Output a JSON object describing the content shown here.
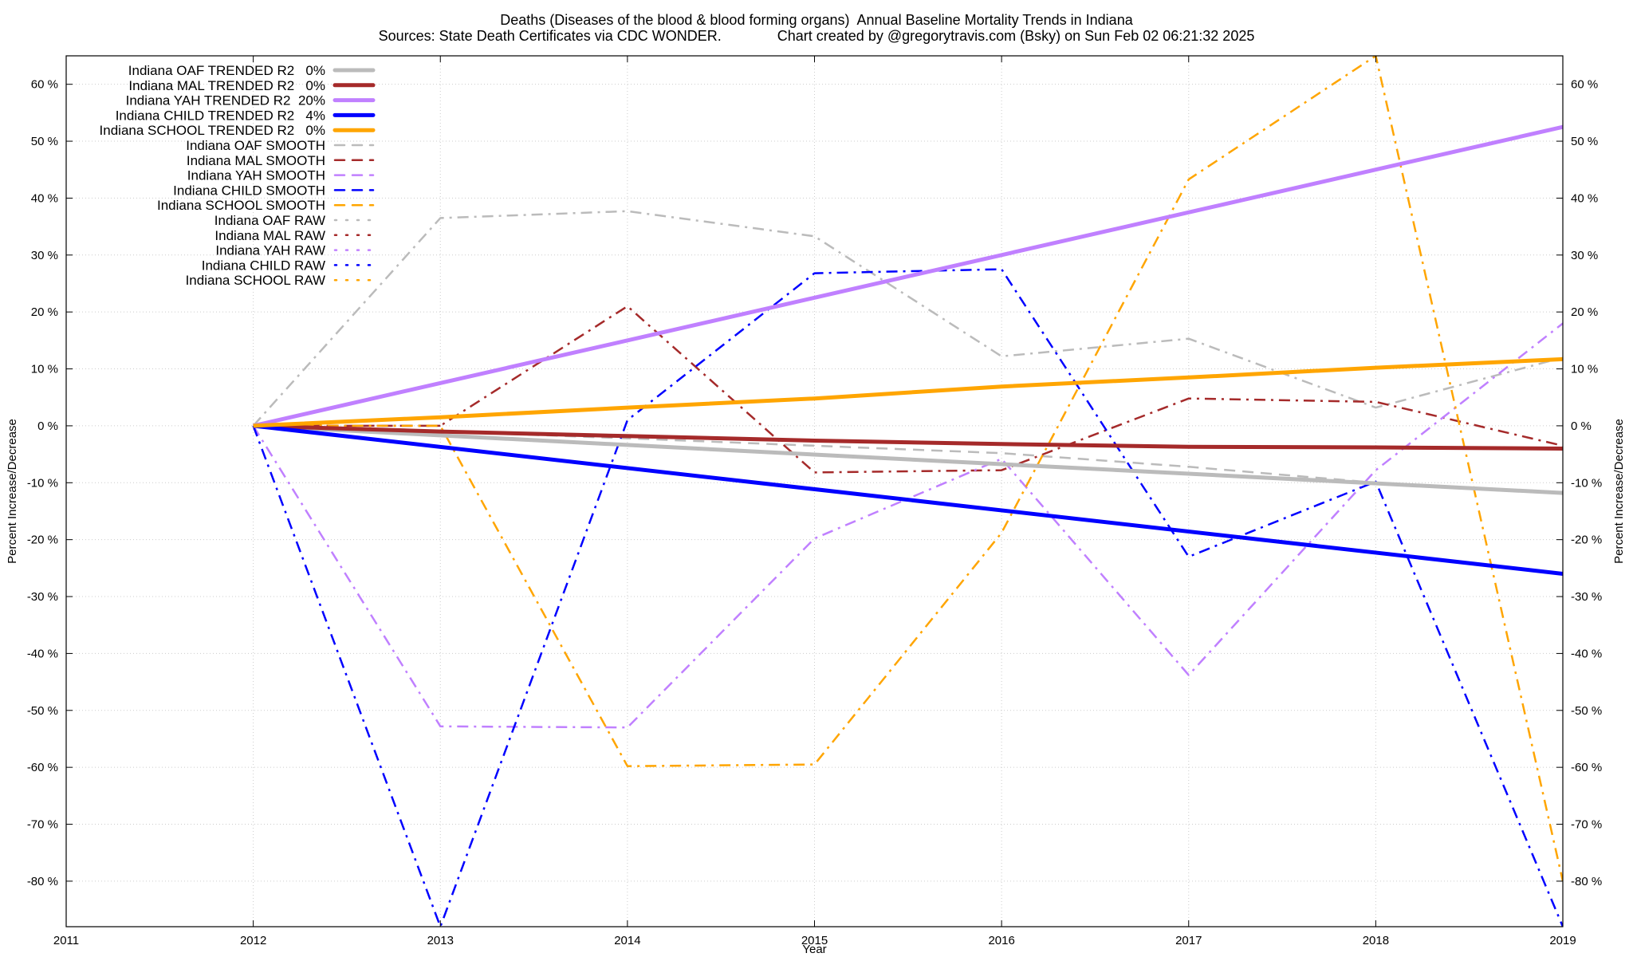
{
  "chart_data": {
    "type": "line",
    "title": "Deaths (Diseases of the blood & blood forming organs)  Annual Baseline Mortality Trends in Indiana",
    "subtitle": "Sources: State Death Certificates via CDC WONDER.              Chart created by @gregorytravis.com (Bsky) on Sun Feb 02 06:21:32 2025",
    "xlabel": "Year",
    "ylabel_left": "Percent Increase/Decrease",
    "ylabel_right": "Percent Increase/Decrease",
    "xlim": [
      2011,
      2019
    ],
    "ylim": [
      -88,
      65
    ],
    "x_ticks": [
      2011,
      2012,
      2013,
      2014,
      2015,
      2016,
      2017,
      2018,
      2019
    ],
    "x_tick_labels": [
      "2011",
      "2012",
      "2013",
      "2014",
      "2015",
      "2016",
      "2017",
      "2018",
      "2019"
    ],
    "y_ticks": [
      60,
      50,
      40,
      30,
      20,
      10,
      0,
      -10,
      -20,
      -30,
      -40,
      -50,
      -60,
      -70,
      -80
    ],
    "y_tick_labels": [
      "60 %",
      "50 %",
      "40 %",
      "30 %",
      "20 %",
      "10 %",
      "0 %",
      "-10 %",
      "-20 %",
      "-30 %",
      "-40 %",
      "-50 %",
      "-60 %",
      "-70 %",
      "-80 %"
    ],
    "grid": true,
    "legend_position": "top-left",
    "series": [
      {
        "name": "Indiana OAF TRENDED R2   0%",
        "style": "solid",
        "color": "#bbbbbb",
        "x": [
          2012,
          2019
        ],
        "y": [
          0,
          -11.8
        ]
      },
      {
        "name": "Indiana MAL TRENDED R2   0%",
        "style": "solid",
        "color": "#a52a2a",
        "x": [
          2012,
          2013,
          2014,
          2015,
          2016,
          2017,
          2018,
          2019
        ],
        "y": [
          0,
          -1.0,
          -1.8,
          -2.6,
          -3.2,
          -3.7,
          -3.8,
          -4.0
        ]
      },
      {
        "name": "Indiana YAH TRENDED R2  20%",
        "style": "solid",
        "color": "#c080ff",
        "x": [
          2012,
          2019
        ],
        "y": [
          0,
          52.5
        ]
      },
      {
        "name": "Indiana CHILD TRENDED R2   4%",
        "style": "solid",
        "color": "#0000ff",
        "x": [
          2012,
          2019
        ],
        "y": [
          0,
          -26
        ]
      },
      {
        "name": "Indiana SCHOOL TRENDED R2   0%",
        "style": "solid",
        "color": "#ffa500",
        "x": [
          2012,
          2013,
          2014,
          2015,
          2016,
          2017,
          2018,
          2019
        ],
        "y": [
          0,
          1.5,
          3.2,
          4.8,
          6.9,
          8.5,
          10.2,
          11.7
        ]
      },
      {
        "name": "Indiana OAF SMOOTH",
        "style": "dashed",
        "color": "#bbbbbb",
        "x": [
          2012,
          2013,
          2014,
          2015,
          2016,
          2017,
          2018,
          2019
        ],
        "y": [
          0,
          -1.0,
          -2.2,
          -3.5,
          -4.8,
          -7.2,
          -10,
          -11.8
        ]
      },
      {
        "name": "Indiana MAL SMOOTH",
        "style": "dashed",
        "color": "#a52a2a",
        "x": [
          2012,
          2013
        ],
        "y": [
          0,
          0
        ]
      },
      {
        "name": "Indiana YAH SMOOTH",
        "style": "dashed",
        "color": "#c080ff",
        "x": [],
        "y": []
      },
      {
        "name": "Indiana CHILD SMOOTH",
        "style": "dashed",
        "color": "#0000ff",
        "x": [],
        "y": []
      },
      {
        "name": "Indiana SCHOOL SMOOTH",
        "style": "dashed",
        "color": "#ffa500",
        "x": [],
        "y": []
      },
      {
        "name": "Indiana OAF RAW",
        "style": "dotted",
        "color": "#bbbbbb",
        "x": [
          2012,
          2013,
          2014,
          2015,
          2016,
          2017,
          2018,
          2019
        ],
        "y": [
          0,
          36.5,
          37.7,
          33.3,
          12.2,
          15.3,
          3.2,
          12
        ]
      },
      {
        "name": "Indiana MAL RAW",
        "style": "dotted",
        "color": "#a52a2a",
        "x": [
          2012,
          2013,
          2014,
          2015,
          2016,
          2017,
          2018,
          2019
        ],
        "y": [
          0,
          0,
          21,
          -8.2,
          -7.8,
          4.8,
          4.2,
          -3.5
        ]
      },
      {
        "name": "Indiana YAH RAW",
        "style": "dotted",
        "color": "#c080ff",
        "x": [
          2012,
          2013,
          2014,
          2015,
          2016,
          2017,
          2018,
          2019
        ],
        "y": [
          0,
          -52.8,
          -53,
          -19.8,
          -5.8,
          -43.8,
          -7.8,
          18
        ]
      },
      {
        "name": "Indiana CHILD RAW",
        "style": "dotted",
        "color": "#0000ff",
        "x": [
          2012,
          2013,
          2014,
          2015,
          2016,
          2017,
          2018,
          2019
        ],
        "y": [
          0,
          -88,
          1,
          26.8,
          27.5,
          -23,
          -9.8,
          -88
        ]
      },
      {
        "name": "Indiana SCHOOL RAW",
        "style": "dotted",
        "color": "#ffa500",
        "x": [
          2012,
          2013,
          2014,
          2015,
          2016,
          2017,
          2018,
          2019
        ],
        "y": [
          0,
          0,
          -59.8,
          -59.5,
          -18.8,
          43.3,
          65,
          -80
        ]
      }
    ]
  }
}
